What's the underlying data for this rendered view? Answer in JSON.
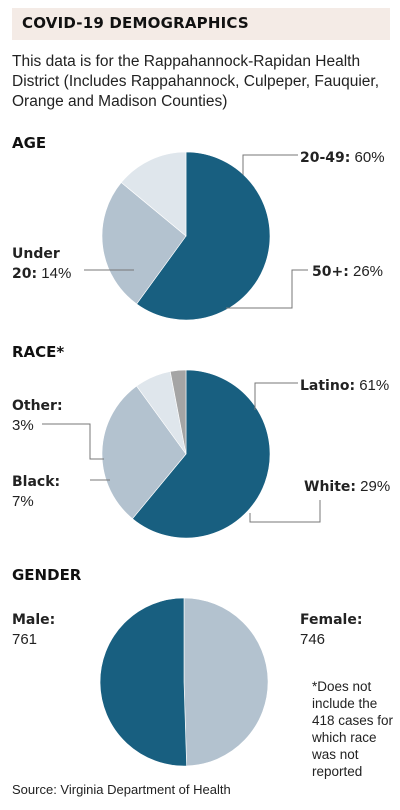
{
  "title": "COVID-19 DEMOGRAPHICS",
  "intro": "This data is for the Rappahannock-Rapidan Health District (Includes Rappahannock, Culpeper, Fauquier, Orange and Madison Counties)",
  "footnote": "*Does not include the 418 cases for which race was not reported",
  "source": "Source: Virginia Department of Health",
  "colors": {
    "dark": "#185f80",
    "light": "#b3c2cf",
    "lighter": "#dfe6ec",
    "gray": "#a5a5a5"
  },
  "chart_data": [
    {
      "type": "pie",
      "title": "AGE",
      "slices": [
        {
          "label": "20-49:",
          "value": 60,
          "display": "60%"
        },
        {
          "label": "50+:",
          "value": 26,
          "display": "26%"
        },
        {
          "label_line1": "Under",
          "label": "20:",
          "value": 14,
          "display": "14%"
        }
      ]
    },
    {
      "type": "pie",
      "title": "RACE*",
      "slices": [
        {
          "label": "Latino:",
          "value": 61,
          "display": "61%"
        },
        {
          "label": "White:",
          "value": 29,
          "display": "29%"
        },
        {
          "label": "Black:",
          "value": 7,
          "display": "7%"
        },
        {
          "label": "Other:",
          "value": 3,
          "display": "3%"
        }
      ]
    },
    {
      "type": "pie",
      "title": "GENDER",
      "slices": [
        {
          "label": "Female:",
          "value": 746,
          "display": "746"
        },
        {
          "label": "Male:",
          "value": 761,
          "display": "761"
        }
      ]
    }
  ]
}
